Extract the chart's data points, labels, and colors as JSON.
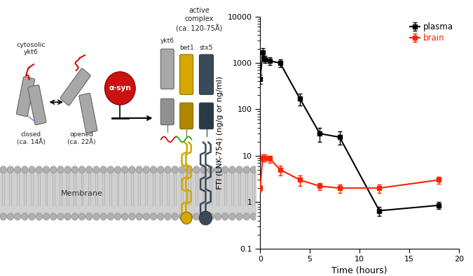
{
  "plasma_x": [
    0,
    0.25,
    0.5,
    1,
    2,
    4,
    6,
    8,
    12,
    18
  ],
  "plasma_y": [
    450,
    1700,
    1200,
    1100,
    1000,
    170,
    30,
    25,
    0.65,
    0.85
  ],
  "plasma_yerr_lo": [
    100,
    350,
    200,
    200,
    200,
    50,
    10,
    8,
    0.15,
    0.15
  ],
  "plasma_yerr_hi": [
    100,
    350,
    200,
    200,
    200,
    50,
    10,
    8,
    0.15,
    0.15
  ],
  "brain_x": [
    0,
    0.25,
    0.5,
    1,
    2,
    4,
    6,
    8,
    12,
    18
  ],
  "brain_y": [
    2.0,
    9.0,
    9.0,
    8.5,
    5.0,
    3.0,
    2.2,
    2.0,
    2.0,
    3.0
  ],
  "brain_yerr_lo": [
    0.3,
    1.5,
    1.5,
    1.5,
    1.2,
    0.8,
    0.4,
    0.4,
    0.4,
    0.5
  ],
  "brain_yerr_hi": [
    0.3,
    1.5,
    1.5,
    1.5,
    1.2,
    0.8,
    0.4,
    0.4,
    0.4,
    0.5
  ],
  "plasma_color": "#000000",
  "brain_color": "#ff2200",
  "ylabel": "FTI (LNK-754) (ng/g or ng/ml)",
  "xlabel": "Time (hours)",
  "ylim": [
    0.1,
    10000
  ],
  "xlim": [
    0,
    20
  ],
  "xticks": [
    0,
    5,
    10,
    15,
    20
  ],
  "legend_plasma": "plasma",
  "legend_brain": "brain",
  "marker_size": 4.5,
  "linewidth": 1.5,
  "capsize": 2.5,
  "elinewidth": 1.0,
  "gray_fc": "#a8a8a8",
  "gray_ec": "#666666",
  "dark_fc": "#3a4a5a",
  "dark_ec": "#2a3a4a",
  "gold_fc": "#d4a800",
  "gold_ec": "#8a6c00",
  "red_circle": "#cc1111",
  "membrane_fill": "#d0d0d0",
  "membrane_head": "#b0b0b0"
}
